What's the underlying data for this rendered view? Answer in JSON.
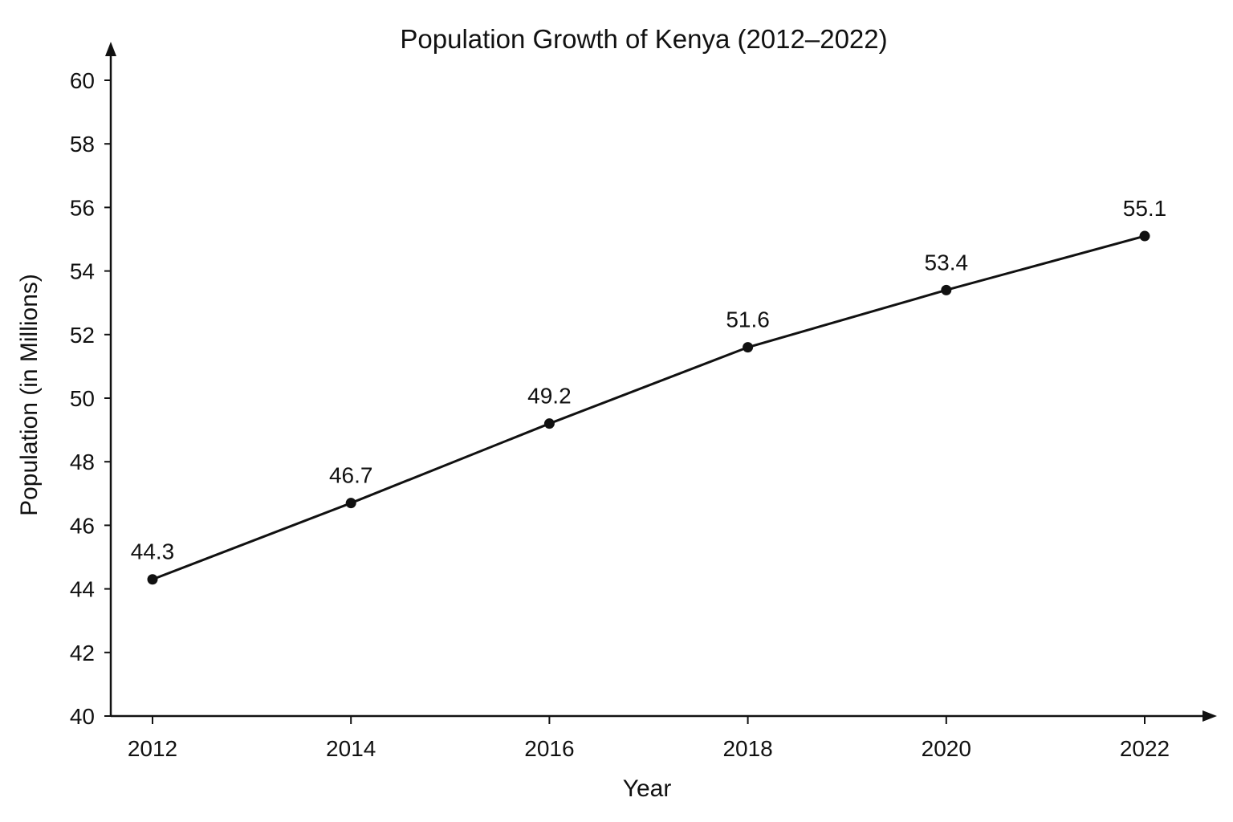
{
  "chart_data": {
    "type": "line",
    "title": "Population Growth of Kenya (2012–2022)",
    "xlabel": "Year",
    "ylabel": "Population (in Millions)",
    "x": [
      2012,
      2014,
      2016,
      2018,
      2020,
      2022
    ],
    "x_tick_labels": [
      "2012",
      "2014",
      "2016",
      "2018",
      "2020",
      "2022"
    ],
    "y_tick_labels": [
      "40",
      "42",
      "44",
      "46",
      "48",
      "50",
      "52",
      "54",
      "56",
      "58",
      "60"
    ],
    "y_ticks": [
      40,
      42,
      44,
      46,
      48,
      50,
      52,
      54,
      56,
      58,
      60
    ],
    "ylim": [
      40,
      60
    ],
    "series": [
      {
        "values": [
          44.3,
          46.7,
          49.2,
          51.6,
          53.4,
          55.1
        ],
        "data_labels": [
          "44.3",
          "46.7",
          "49.2",
          "51.6",
          "53.4",
          "55.1"
        ],
        "color": "#111111"
      }
    ],
    "grid": false,
    "legend": "none"
  }
}
